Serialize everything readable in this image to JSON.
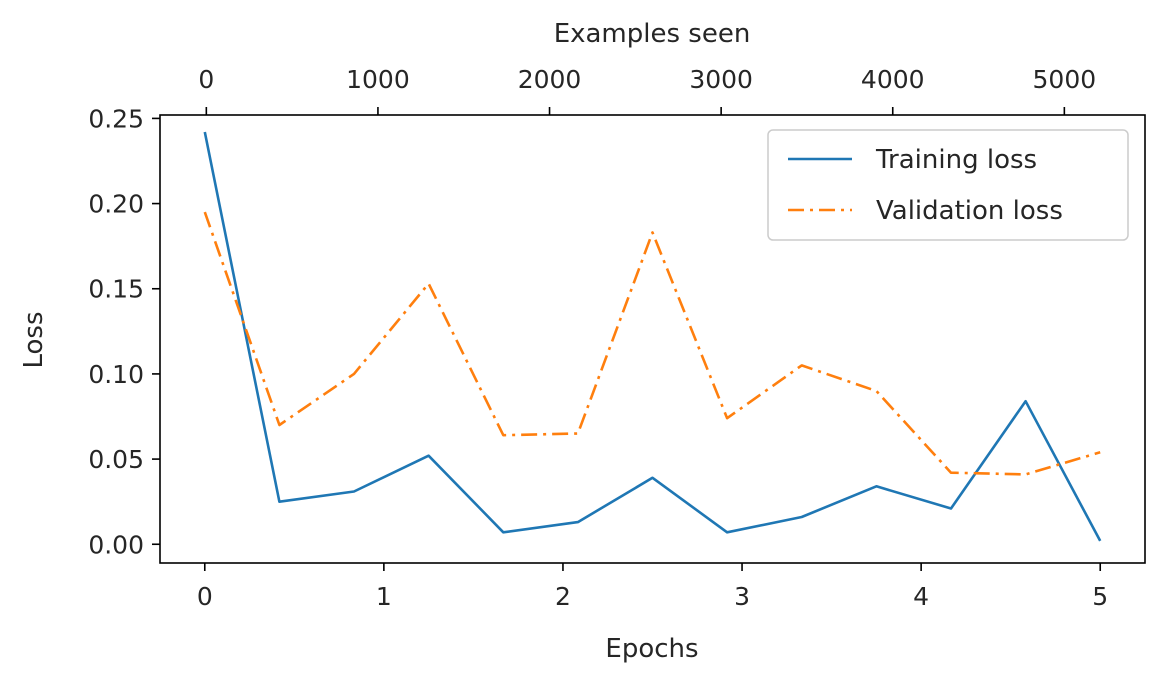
{
  "chart_data": {
    "type": "line",
    "xlabel": "Epochs",
    "ylabel": "Loss",
    "x2label": "Examples seen",
    "xlim": [
      -0.25,
      5.25
    ],
    "ylim": [
      -0.011,
      0.252
    ],
    "x2lim": [
      -270,
      5470
    ],
    "x_ticks": [
      "0",
      "1",
      "2",
      "3",
      "4",
      "5"
    ],
    "x_tick_values": [
      0,
      1,
      2,
      3,
      4,
      5
    ],
    "y_ticks": [
      "0.00",
      "0.05",
      "0.10",
      "0.15",
      "0.20",
      "0.25"
    ],
    "y_tick_values": [
      0.0,
      0.05,
      0.1,
      0.15,
      0.2,
      0.25
    ],
    "x2_ticks": [
      "0",
      "1000",
      "2000",
      "3000",
      "4000",
      "5000"
    ],
    "x2_tick_values": [
      0,
      1000,
      2000,
      3000,
      4000,
      5000
    ],
    "grid": false,
    "legend_position": "top-right",
    "x": [
      0.0,
      0.4167,
      0.8333,
      1.25,
      1.6667,
      2.0833,
      2.5,
      2.9167,
      3.3333,
      3.75,
      4.1667,
      4.5833,
      5.0
    ],
    "series": [
      {
        "name": "Training loss",
        "color": "#1f77b4",
        "style": "solid",
        "values": [
          0.242,
          0.025,
          0.031,
          0.052,
          0.007,
          0.013,
          0.039,
          0.007,
          0.016,
          0.034,
          0.021,
          0.084,
          0.002
        ]
      },
      {
        "name": "Validation loss",
        "color": "#ff7f0e",
        "style": "dashdot",
        "values": [
          0.195,
          0.07,
          0.1,
          0.153,
          0.064,
          0.065,
          0.183,
          0.074,
          0.105,
          0.09,
          0.042,
          0.041,
          0.054
        ]
      }
    ]
  }
}
